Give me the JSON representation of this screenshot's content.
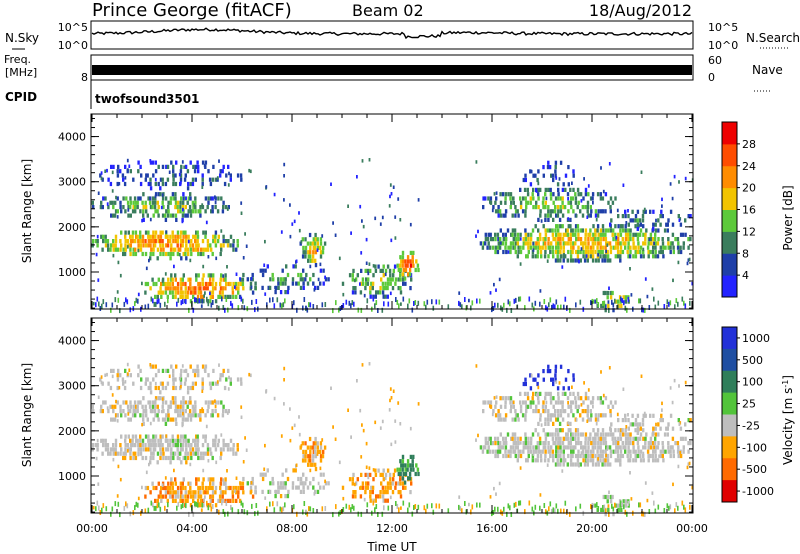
{
  "header": {
    "title": "Prince George (fitACF)",
    "beam": "Beam 02",
    "date": "18/Aug/2012"
  },
  "strips": {
    "nsky": {
      "label": "N.Sky",
      "tick_top": "10^5",
      "tick_bottom": "10^0",
      "right_label": "N.Search",
      "right_tick_top": "10^5",
      "right_tick_bottom": "10^0"
    },
    "freq": {
      "label_line1": "Freq.",
      "label_line2": "[MHz]",
      "tick_top": "",
      "tick_bottom": "8",
      "right_label": "Nave",
      "right_tick_top": "60",
      "right_tick_bottom": "0"
    },
    "cpid": {
      "label": "CPID",
      "program": "twofsound",
      "id": "3501"
    }
  },
  "chart_data": [
    {
      "type": "heatmap",
      "name_title": "Power",
      "ylabel": "Slant Range [km]",
      "ylim": [
        180,
        4500
      ],
      "yticks": [
        "1000",
        "2000",
        "3000",
        "4000"
      ],
      "xlim": [
        0,
        24
      ],
      "colorbar": {
        "label": "Power [dB]",
        "ticks": [
          "4",
          "8",
          "12",
          "16",
          "20",
          "24",
          "28"
        ],
        "range": [
          0,
          32
        ],
        "colors": [
          "#2323ff",
          "#1f3fa8",
          "#3a7d5d",
          "#5cc93a",
          "#f2c400",
          "#ff8c00",
          "#ff4d00",
          "#ee0000"
        ]
      }
    },
    {
      "type": "heatmap",
      "name_title": "Velocity",
      "ylabel": "Slant Range [km]",
      "ylim": [
        180,
        4500
      ],
      "yticks": [
        "1000",
        "2000",
        "3000",
        "4000"
      ],
      "xlabel": "Time UT",
      "xticks": [
        "00:00",
        "04:00",
        "08:00",
        "12:00",
        "16:00",
        "20:00",
        "00:00"
      ],
      "xlim": [
        0,
        24
      ],
      "colorbar": {
        "label": "Velocity [m s",
        "label_sup": "-1",
        "ticks": [
          "1000",
          "500",
          "100",
          "25",
          "-25",
          "-100",
          "-500",
          "-1000"
        ],
        "colors": [
          "#2231d8",
          "#1f4fa2",
          "#2f7e5a",
          "#52c43a",
          "#bebebe",
          "#ffa500",
          "#ff6a00",
          "#e00000"
        ]
      }
    }
  ]
}
